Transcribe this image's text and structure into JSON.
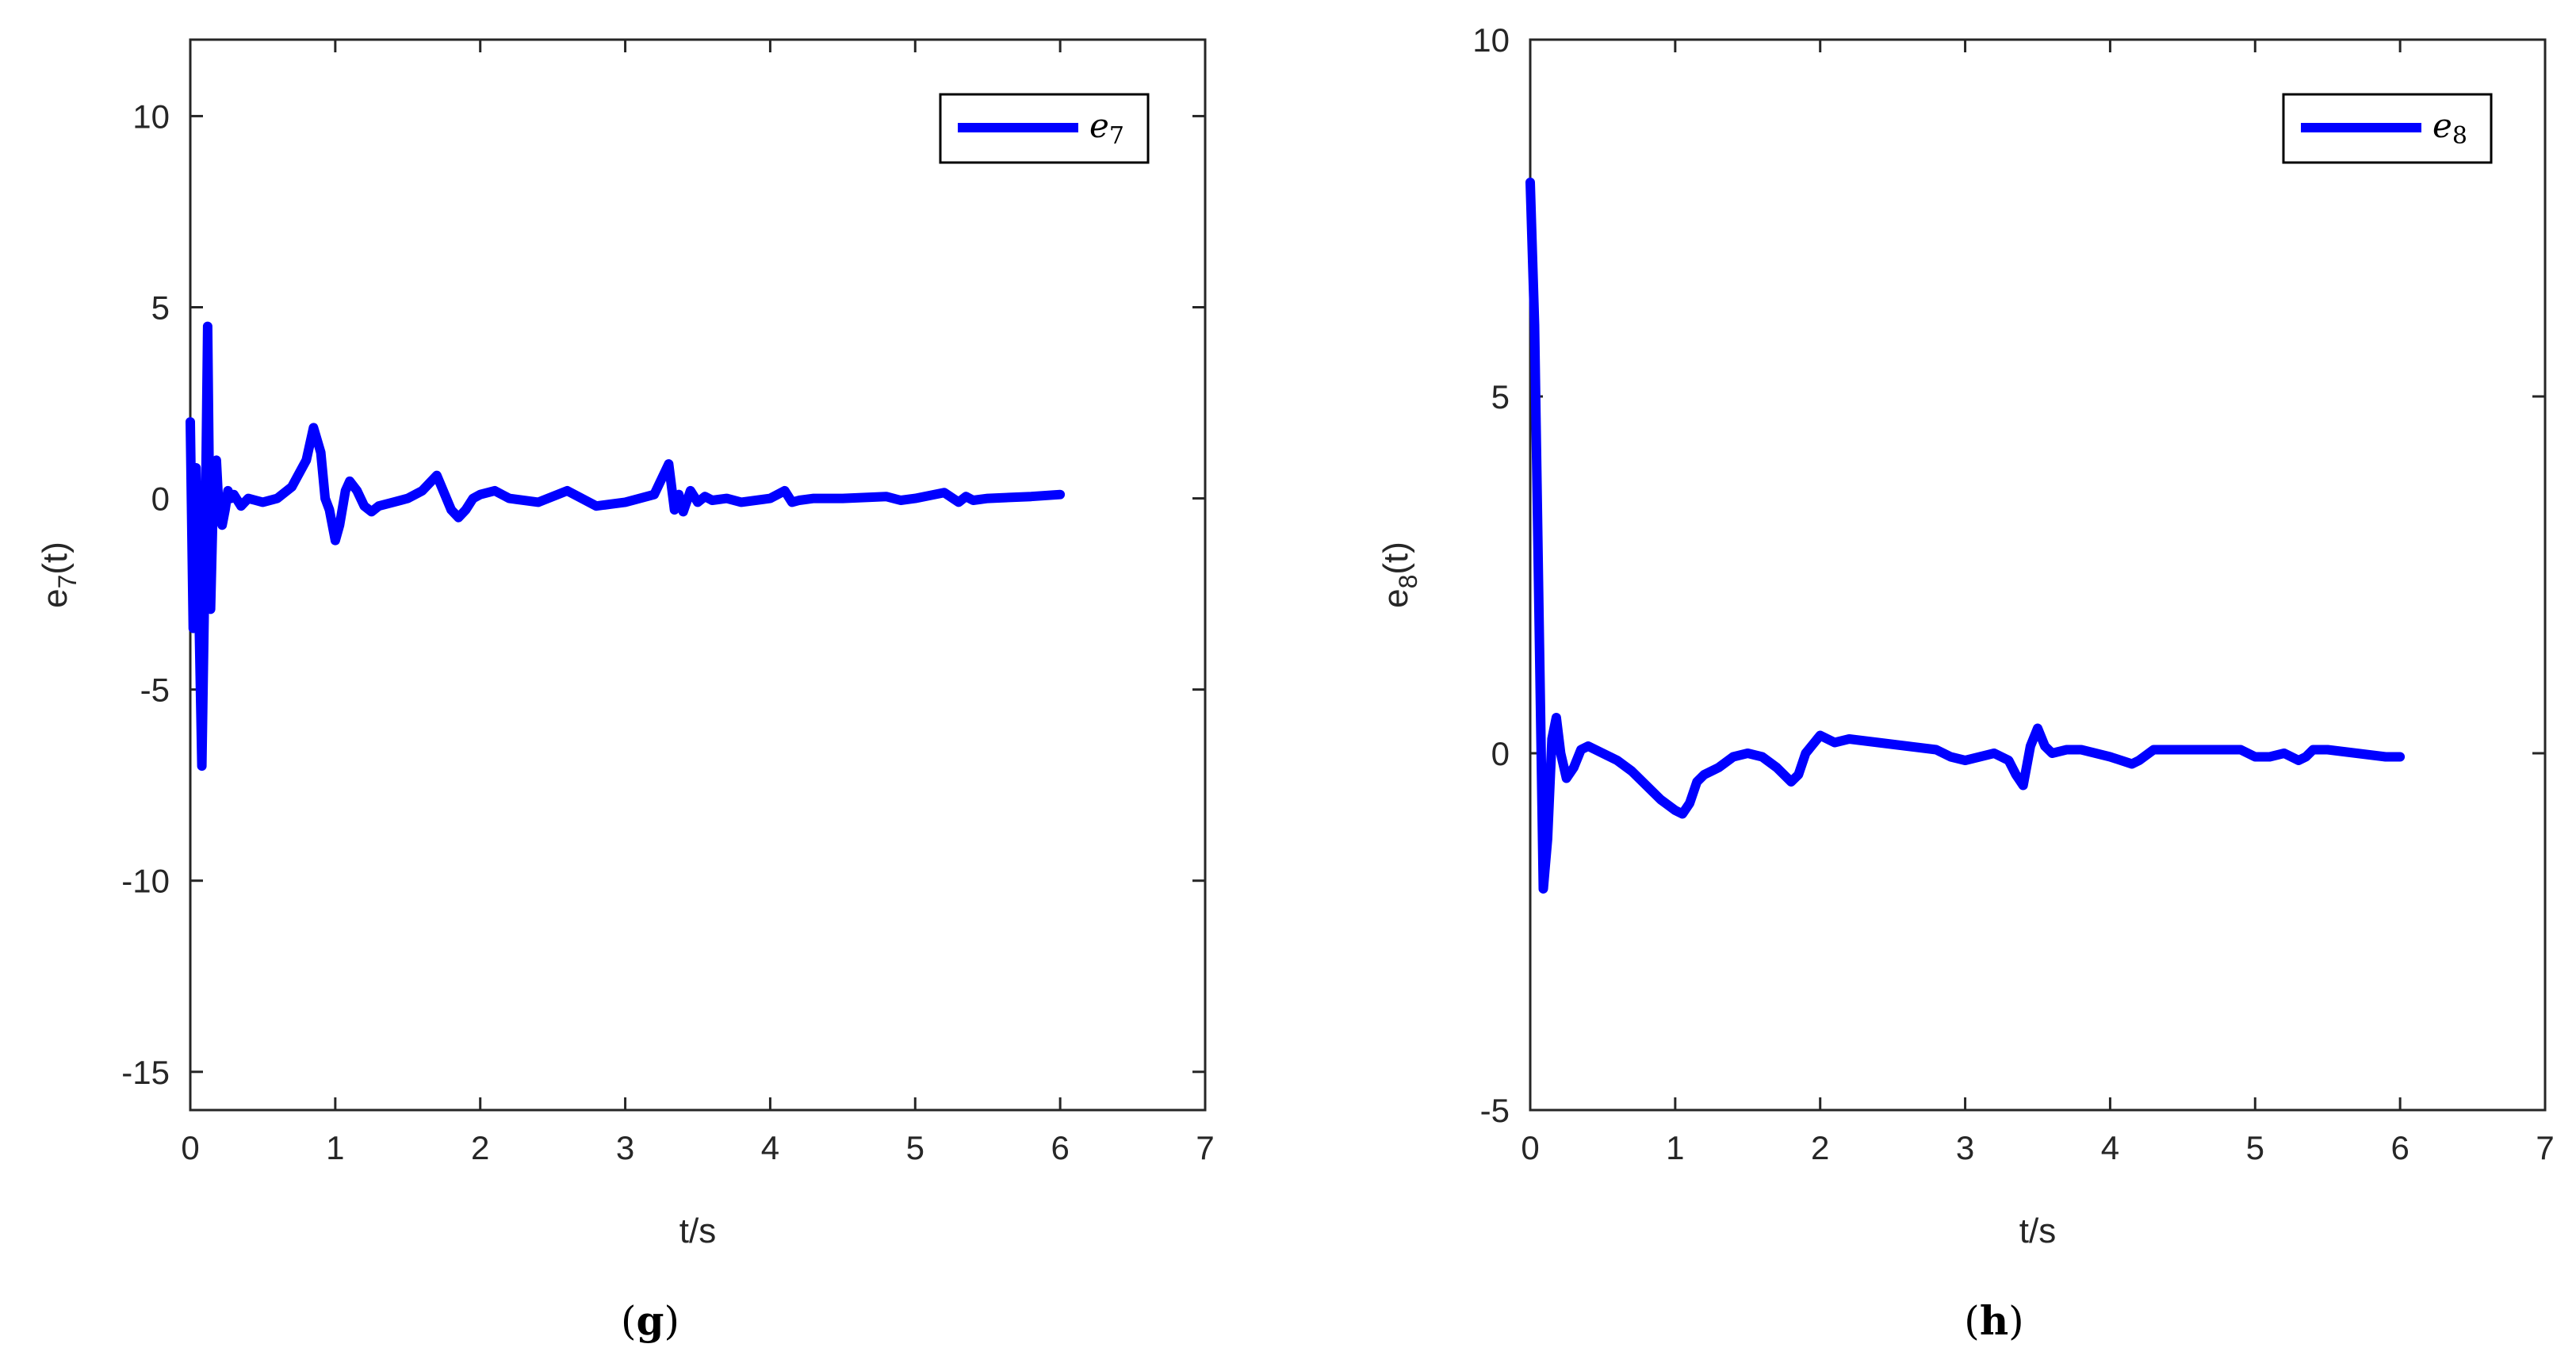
{
  "chart_data": [
    {
      "type": "line",
      "caption_letter": "g",
      "xlabel": "t/s",
      "ylabel_base": "e",
      "ylabel_sub": "7",
      "ylabel_arg": "(t)",
      "xlim": [
        0,
        7
      ],
      "ylim": [
        -16,
        12
      ],
      "xticks": [
        0,
        1,
        2,
        3,
        4,
        5,
        6,
        7
      ],
      "yticks": [
        -15,
        -10,
        -5,
        0,
        5,
        10
      ],
      "grid": false,
      "legend_position": "top-right",
      "series": [
        {
          "name": "e7",
          "legend_base": "e",
          "legend_sub": "7",
          "color": "#0000ff",
          "x": [
            0,
            0.02,
            0.04,
            0.06,
            0.08,
            0.1,
            0.12,
            0.14,
            0.16,
            0.18,
            0.2,
            0.22,
            0.24,
            0.26,
            0.28,
            0.3,
            0.35,
            0.4,
            0.45,
            0.5,
            0.6,
            0.7,
            0.8,
            0.85,
            0.9,
            0.93,
            0.96,
            1.0,
            1.03,
            1.07,
            1.1,
            1.15,
            1.2,
            1.25,
            1.3,
            1.4,
            1.5,
            1.6,
            1.7,
            1.8,
            1.85,
            1.9,
            1.95,
            2.0,
            2.1,
            2.2,
            2.4,
            2.6,
            2.8,
            2.9,
            3.0,
            3.1,
            3.2,
            3.3,
            3.34,
            3.37,
            3.4,
            3.45,
            3.5,
            3.55,
            3.6,
            3.7,
            3.8,
            4.0,
            4.1,
            4.15,
            4.2,
            4.3,
            4.5,
            4.8,
            4.9,
            5.0,
            5.2,
            5.3,
            5.35,
            5.4,
            5.5,
            5.8,
            6.0
          ],
          "y": [
            2.0,
            -3.4,
            0.8,
            -3.0,
            -7.0,
            -2.0,
            4.5,
            -2.9,
            0.3,
            1.0,
            -0.5,
            -0.7,
            -0.3,
            0.2,
            0.0,
            0.1,
            -0.2,
            0.0,
            -0.05,
            -0.1,
            0.0,
            0.3,
            1.0,
            1.85,
            1.2,
            0.0,
            -0.3,
            -1.1,
            -0.7,
            0.2,
            0.45,
            0.2,
            -0.2,
            -0.35,
            -0.2,
            -0.1,
            0.0,
            0.2,
            0.6,
            -0.3,
            -0.5,
            -0.3,
            0.0,
            0.1,
            0.2,
            0.0,
            -0.1,
            0.2,
            -0.2,
            -0.15,
            -0.1,
            0.0,
            0.1,
            0.9,
            -0.3,
            0.1,
            -0.35,
            0.2,
            -0.1,
            0.05,
            -0.05,
            0.0,
            -0.1,
            0.0,
            0.2,
            -0.1,
            -0.05,
            0.0,
            0.0,
            0.05,
            -0.05,
            0.0,
            0.15,
            -0.1,
            0.05,
            -0.05,
            0.0,
            0.05,
            0.1
          ]
        }
      ]
    },
    {
      "type": "line",
      "caption_letter": "h",
      "xlabel": "t/s",
      "ylabel_base": "e",
      "ylabel_sub": "8",
      "ylabel_arg": "(t)",
      "xlim": [
        0,
        7
      ],
      "ylim": [
        -5,
        10
      ],
      "xticks": [
        0,
        1,
        2,
        3,
        4,
        5,
        6,
        7
      ],
      "yticks": [
        -5,
        0,
        5,
        10
      ],
      "grid": false,
      "legend_position": "top-right",
      "series": [
        {
          "name": "e8",
          "legend_base": "e",
          "legend_sub": "8",
          "color": "#0000ff",
          "x": [
            0,
            0.03,
            0.06,
            0.09,
            0.12,
            0.15,
            0.18,
            0.21,
            0.25,
            0.3,
            0.35,
            0.4,
            0.45,
            0.5,
            0.6,
            0.7,
            0.8,
            0.9,
            1.0,
            1.05,
            1.1,
            1.15,
            1.2,
            1.3,
            1.4,
            1.5,
            1.6,
            1.7,
            1.8,
            1.85,
            1.9,
            2.0,
            2.1,
            2.2,
            2.4,
            2.6,
            2.8,
            2.9,
            3.0,
            3.1,
            3.2,
            3.3,
            3.35,
            3.4,
            3.45,
            3.5,
            3.55,
            3.6,
            3.7,
            3.8,
            4.0,
            4.15,
            4.2,
            4.3,
            4.5,
            4.8,
            4.9,
            5.0,
            5.1,
            5.2,
            5.3,
            5.35,
            5.4,
            5.5,
            5.7,
            5.9,
            6.0
          ],
          "y": [
            8.0,
            6.0,
            2.0,
            -1.9,
            -1.2,
            0.2,
            0.5,
            0.0,
            -0.35,
            -0.2,
            0.05,
            0.1,
            0.05,
            0.0,
            -0.1,
            -0.25,
            -0.45,
            -0.65,
            -0.8,
            -0.85,
            -0.7,
            -0.4,
            -0.3,
            -0.2,
            -0.05,
            0.0,
            -0.05,
            -0.2,
            -0.4,
            -0.3,
            0.0,
            0.25,
            0.15,
            0.2,
            0.15,
            0.1,
            0.05,
            -0.05,
            -0.1,
            -0.05,
            0.0,
            -0.1,
            -0.3,
            -0.45,
            0.1,
            0.35,
            0.1,
            0.0,
            0.05,
            0.05,
            -0.05,
            -0.15,
            -0.1,
            0.05,
            0.05,
            0.05,
            0.05,
            -0.05,
            -0.05,
            0.0,
            -0.1,
            -0.05,
            0.05,
            0.05,
            0.0,
            -0.05,
            -0.05
          ]
        }
      ]
    }
  ]
}
